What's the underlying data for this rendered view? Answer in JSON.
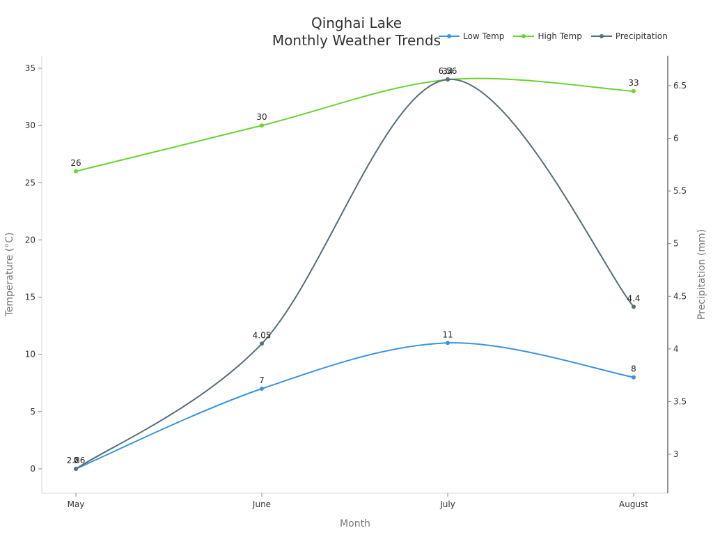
{
  "chart_data": {
    "type": "line",
    "title": "Qinghai Lake\nMonthly Weather Trends",
    "title_lines": [
      "Qinghai Lake",
      "Monthly Weather Trends"
    ],
    "xlabel": "Month",
    "ylabel": "Temperature (°C)",
    "y2label": "Precipitation (mm)",
    "categories": [
      "May",
      "June",
      "July",
      "August"
    ],
    "series": [
      {
        "name": "Low Temp",
        "axis": "left",
        "color": "#3b93e0",
        "values": [
          0,
          7,
          11,
          8
        ]
      },
      {
        "name": "High Temp",
        "axis": "left",
        "color": "#6bd332",
        "values": [
          26,
          30,
          34,
          33
        ]
      },
      {
        "name": "Precipitation",
        "axis": "right",
        "color": "#546e7a",
        "values": [
          2.86,
          4.05,
          6.56,
          4.4
        ]
      }
    ],
    "ylim": [
      -2.2,
      36.2
    ],
    "y_ticks": [
      0,
      5,
      10,
      15,
      20,
      25,
      30,
      35
    ],
    "y2lim": [
      2.6,
      6.75
    ],
    "y2_ticks": [
      3,
      3.5,
      4,
      4.5,
      5,
      5.5,
      6,
      6.5
    ],
    "grid": false,
    "legend_position": "top-right",
    "smooth": true,
    "data_labels": true
  }
}
